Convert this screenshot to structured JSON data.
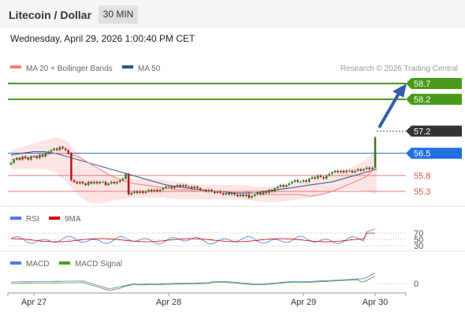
{
  "header": {
    "title": "Litecoin / Dollar",
    "timeframe": "30 MIN"
  },
  "datetime": "Wednesday, April 29, 2026 1:00:40 PM CET",
  "legend": {
    "ma20": "MA 20 + Bollinger Bands",
    "ma50": "MA 50",
    "copyright": "Research © 2026 Trading Central",
    "rsi": "RSI",
    "rsi_ma": "9MA",
    "macd": "MACD",
    "macd_signal": "MACD Signal"
  },
  "colors": {
    "ma20": "#f08080",
    "ma50": "#2f4f8f",
    "green_level": "#4a9a1a",
    "blue_level": "#1f6fe0",
    "red_level": "#e05050",
    "current": "#333333",
    "candle_up": "#3a7a2a",
    "candle_down": "#b02020",
    "band_fill": "#fde0e0",
    "rsi_line": "#5577dd",
    "rsi_ma_line": "#cc0000",
    "macd_line": "#5577dd",
    "signal_line": "#4a9a1a"
  },
  "chart_data": {
    "type": "candlestick",
    "price_axis": {
      "min": 54.9,
      "max": 59.3
    },
    "levels": [
      {
        "value": 58.7,
        "label": "58.7",
        "kind": "resistance"
      },
      {
        "value": 58.2,
        "label": "58.2",
        "kind": "resistance"
      },
      {
        "value": 57.2,
        "label": "57.2",
        "kind": "current"
      },
      {
        "value": 56.5,
        "label": "56.5",
        "kind": "pivot"
      },
      {
        "value": 55.8,
        "label": "55.8",
        "kind": "support"
      },
      {
        "value": 55.3,
        "label": "55.3",
        "kind": "support"
      }
    ],
    "x_labels": [
      "Apr 27",
      "Apr 28",
      "Apr 29",
      "Apr 30"
    ],
    "x_label_index": [
      8,
      55,
      102,
      127
    ],
    "n_bars": 128,
    "close": [
      56.2,
      56.3,
      56.35,
      56.3,
      56.4,
      56.35,
      56.3,
      56.4,
      56.4,
      56.35,
      56.45,
      56.4,
      56.5,
      56.55,
      56.6,
      56.65,
      56.6,
      56.7,
      56.65,
      56.6,
      56.5,
      55.65,
      55.6,
      55.55,
      55.6,
      55.55,
      55.5,
      55.6,
      55.55,
      55.6,
      55.55,
      55.6,
      55.6,
      55.5,
      55.55,
      55.6,
      55.55,
      55.6,
      55.65,
      55.7,
      55.85,
      55.2,
      55.25,
      55.3,
      55.25,
      55.3,
      55.25,
      55.3,
      55.35,
      55.3,
      55.35,
      55.3,
      55.35,
      55.4,
      55.45,
      55.45,
      55.4,
      55.45,
      55.5,
      55.45,
      55.5,
      55.45,
      55.45,
      55.4,
      55.45,
      55.4,
      55.35,
      55.35,
      55.3,
      55.35,
      55.3,
      55.25,
      55.3,
      55.25,
      55.2,
      55.25,
      55.2,
      55.25,
      55.2,
      55.15,
      55.2,
      55.15,
      55.2,
      55.1,
      55.15,
      55.2,
      55.25,
      55.2,
      55.3,
      55.25,
      55.35,
      55.3,
      55.4,
      55.45,
      55.5,
      55.45,
      55.5,
      55.55,
      55.6,
      55.65,
      55.6,
      55.6,
      55.65,
      55.6,
      55.7,
      55.75,
      55.7,
      55.8,
      55.75,
      55.7,
      55.8,
      55.85,
      55.9,
      55.95,
      55.9,
      55.95,
      55.9,
      55.95,
      55.95,
      55.9,
      55.95,
      56.0,
      55.95,
      56.0,
      56.05,
      56.0,
      56.05,
      57.0,
      57.1,
      57.3
    ],
    "ma20_points": [
      56.3,
      56.35,
      56.4,
      56.45,
      56.5,
      56.5,
      56.4,
      56.2,
      56.0,
      55.8,
      55.65,
      55.55,
      55.5,
      55.45,
      55.4,
      55.35,
      55.35,
      55.3,
      55.3,
      55.3,
      55.3,
      55.3,
      55.25,
      55.2,
      55.2,
      55.2,
      55.2,
      55.15,
      55.2,
      55.3,
      55.45,
      55.6,
      55.75,
      56.1
    ],
    "ma50_points": [
      56.45,
      56.5,
      56.55,
      56.55,
      56.5,
      56.4,
      56.3,
      56.2,
      56.1,
      56.0,
      55.9,
      55.8,
      55.7,
      55.6,
      55.5,
      55.45,
      55.4,
      55.35,
      55.3,
      55.3,
      55.25,
      55.25,
      55.25,
      55.3,
      55.35,
      55.4,
      55.45,
      55.5,
      55.55,
      55.6,
      55.7,
      55.8,
      55.9,
      56.0
    ],
    "upper_band": [
      56.6,
      56.7,
      56.8,
      56.9,
      57.0,
      56.9,
      56.5,
      56.2,
      56.0,
      55.8,
      55.75,
      55.7,
      55.7,
      55.7,
      55.65,
      55.6,
      55.55,
      55.5,
      55.5,
      55.5,
      55.5,
      55.5,
      55.45,
      55.45,
      55.45,
      55.5,
      55.55,
      55.6,
      55.7,
      55.8,
      55.95,
      56.1,
      56.3,
      56.6
    ],
    "lower_band": [
      56.0,
      56.0,
      56.0,
      56.0,
      55.9,
      55.6,
      55.2,
      54.95,
      54.9,
      55.0,
      55.05,
      55.1,
      55.1,
      55.1,
      55.1,
      55.05,
      55.05,
      55.05,
      55.05,
      55.05,
      55.05,
      55.05,
      55.0,
      54.95,
      54.95,
      55.0,
      55.05,
      55.1,
      55.2,
      55.3,
      55.35,
      55.35,
      55.3,
      55.2
    ],
    "rsi": {
      "levels": [
        70,
        50,
        30
      ],
      "min": 0,
      "max": 100
    },
    "macd": {
      "levels": [
        0
      ]
    }
  }
}
